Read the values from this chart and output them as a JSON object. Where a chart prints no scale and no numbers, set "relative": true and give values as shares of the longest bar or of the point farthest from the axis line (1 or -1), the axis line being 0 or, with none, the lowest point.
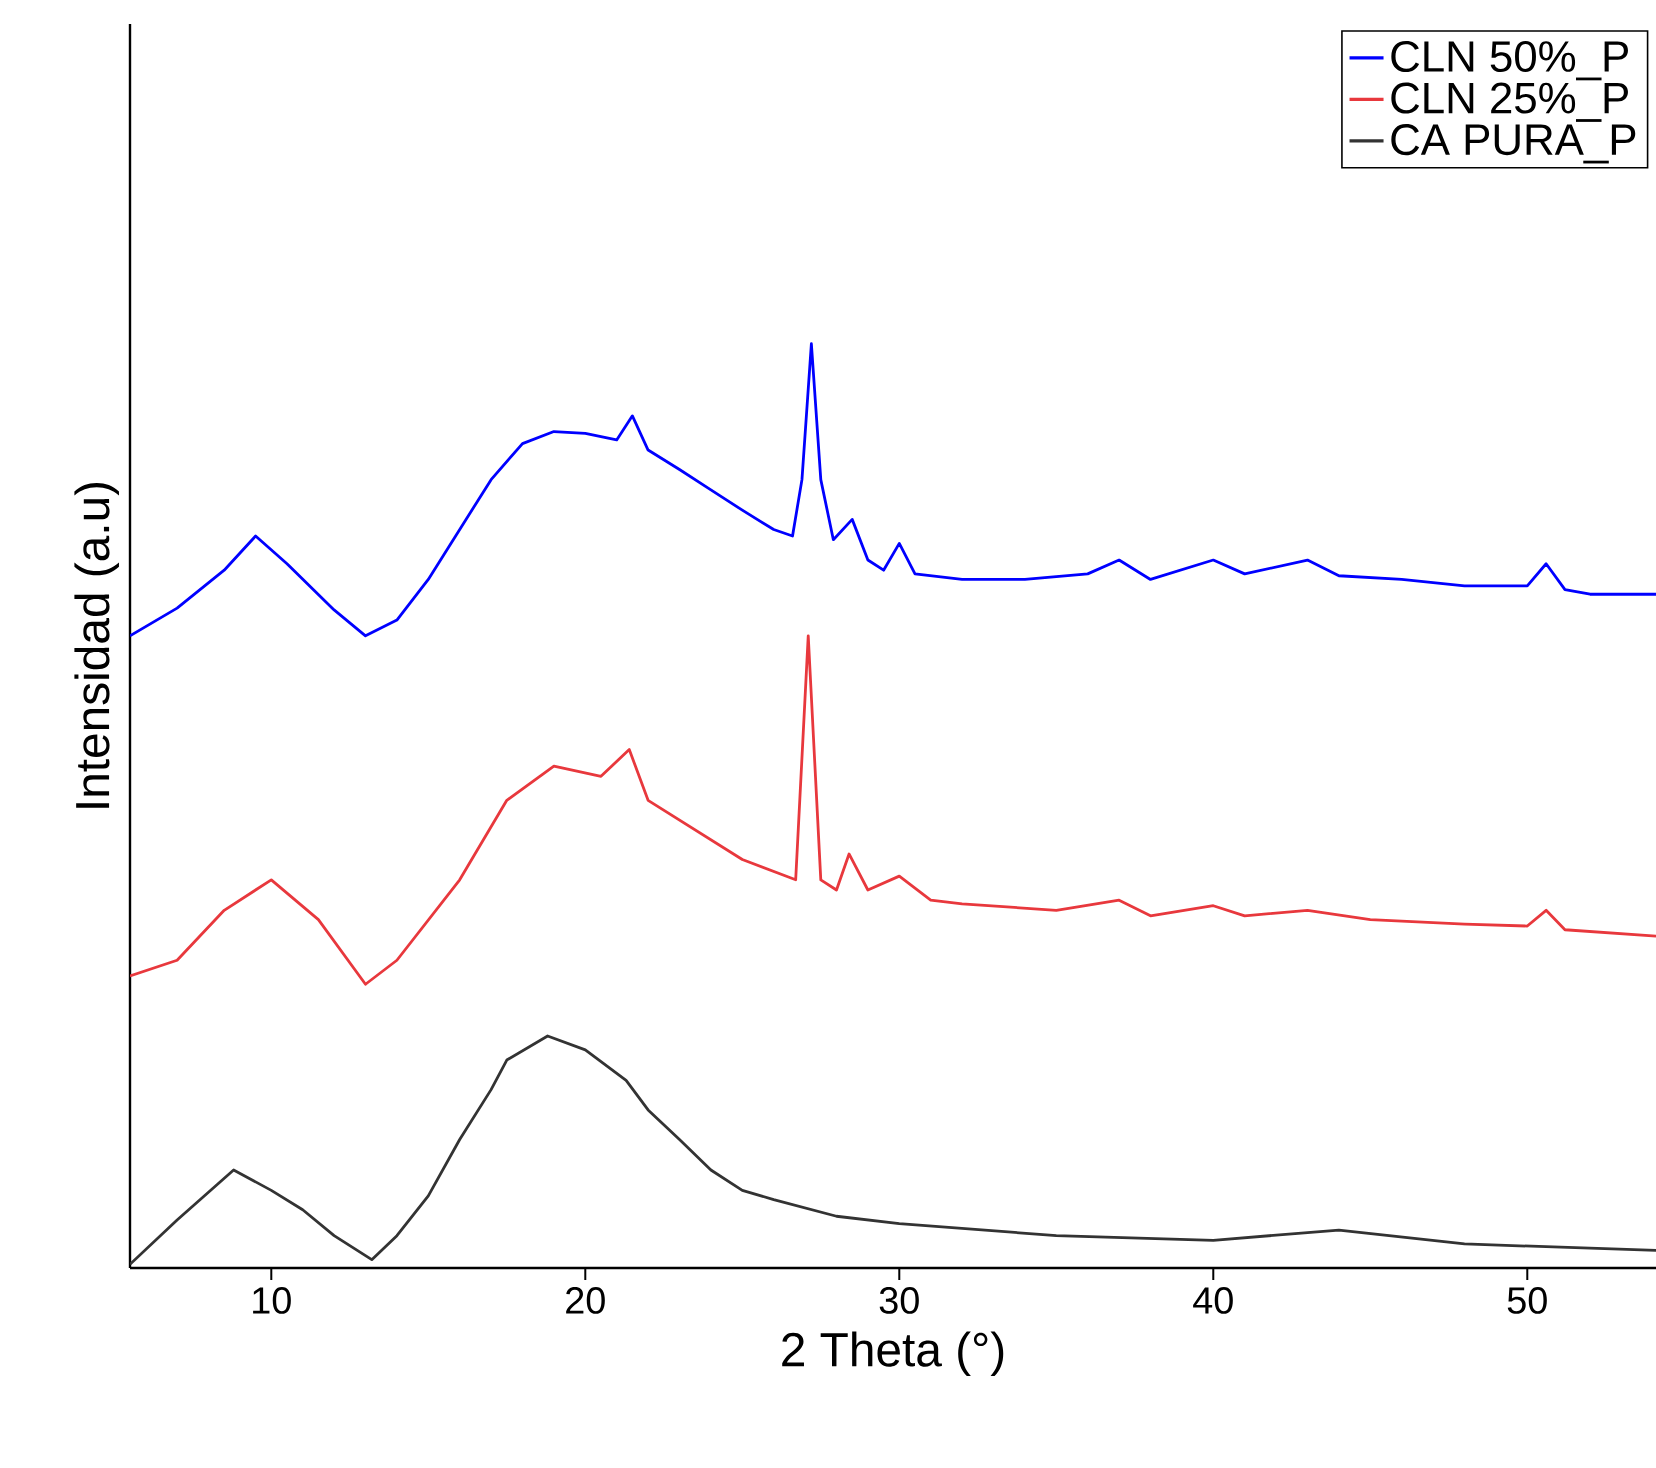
{
  "chart_data": {
    "type": "line",
    "xlabel": "2 Theta (°)",
    "ylabel": "Intensidad (a.u)",
    "relative": true,
    "xlim": [
      5.5,
      54.1
    ],
    "xticks": [
      10,
      20,
      30,
      40,
      50
    ],
    "legend": "top right",
    "line_style": "solid",
    "series": [
      {
        "name": "CLN 50%_P",
        "color": "#0000ff",
        "x": [
          5.5,
          7,
          8.5,
          9.5,
          10.5,
          12,
          13,
          14,
          15,
          16,
          17,
          18,
          19,
          20,
          21,
          21.5,
          22,
          23,
          24,
          25,
          26,
          26.6,
          26.9,
          27.2,
          27.5,
          27.9,
          28.5,
          29,
          29.5,
          30,
          30.5,
          32,
          34,
          36,
          37,
          38,
          40,
          41,
          43,
          44,
          46,
          48,
          50,
          50.6,
          51.2,
          52,
          54.1
        ],
        "values": [
          0.684,
          0.714,
          0.755,
          0.792,
          0.762,
          0.712,
          0.684,
          0.701,
          0.745,
          0.799,
          0.853,
          0.892,
          0.905,
          0.903,
          0.896,
          0.922,
          0.885,
          0.864,
          0.842,
          0.82,
          0.799,
          0.792,
          0.853,
          1.0,
          0.853,
          0.788,
          0.81,
          0.766,
          0.755,
          0.784,
          0.751,
          0.745,
          0.745,
          0.751,
          0.766,
          0.745,
          0.766,
          0.751,
          0.766,
          0.749,
          0.745,
          0.738,
          0.738,
          0.762,
          0.734,
          0.729,
          0.729
        ]
      },
      {
        "name": "CLN 25%_P",
        "color": "#e8383d",
        "x": [
          5.5,
          7,
          8.5,
          10,
          11.5,
          13,
          14,
          16,
          17.5,
          19,
          20.5,
          21.4,
          22,
          23.5,
          25,
          26.7,
          27.1,
          27.5,
          28,
          28.4,
          29,
          30,
          31,
          32,
          35,
          37,
          38,
          40,
          41,
          43,
          45,
          48,
          50,
          50.6,
          51.2,
          54.1
        ],
        "values": [
          0.316,
          0.333,
          0.387,
          0.42,
          0.377,
          0.307,
          0.333,
          0.42,
          0.506,
          0.543,
          0.532,
          0.561,
          0.506,
          0.474,
          0.442,
          0.42,
          0.684,
          0.42,
          0.409,
          0.448,
          0.409,
          0.424,
          0.398,
          0.394,
          0.387,
          0.398,
          0.381,
          0.392,
          0.381,
          0.387,
          0.377,
          0.372,
          0.37,
          0.387,
          0.366,
          0.359
        ]
      },
      {
        "name": "CA PURA_P",
        "color": "#333333",
        "x": [
          5.5,
          7,
          8.8,
          10,
          11,
          12,
          13.2,
          14,
          15,
          16,
          17,
          17.5,
          18.8,
          20,
          21.3,
          22,
          23,
          24,
          25,
          26,
          28,
          30,
          35,
          40,
          44,
          48,
          54.1
        ],
        "values": [
          0.004,
          0.052,
          0.106,
          0.084,
          0.063,
          0.035,
          0.009,
          0.035,
          0.078,
          0.139,
          0.193,
          0.225,
          0.251,
          0.236,
          0.203,
          0.171,
          0.139,
          0.106,
          0.084,
          0.074,
          0.056,
          0.048,
          0.035,
          0.03,
          0.041,
          0.026,
          0.019
        ]
      }
    ]
  }
}
